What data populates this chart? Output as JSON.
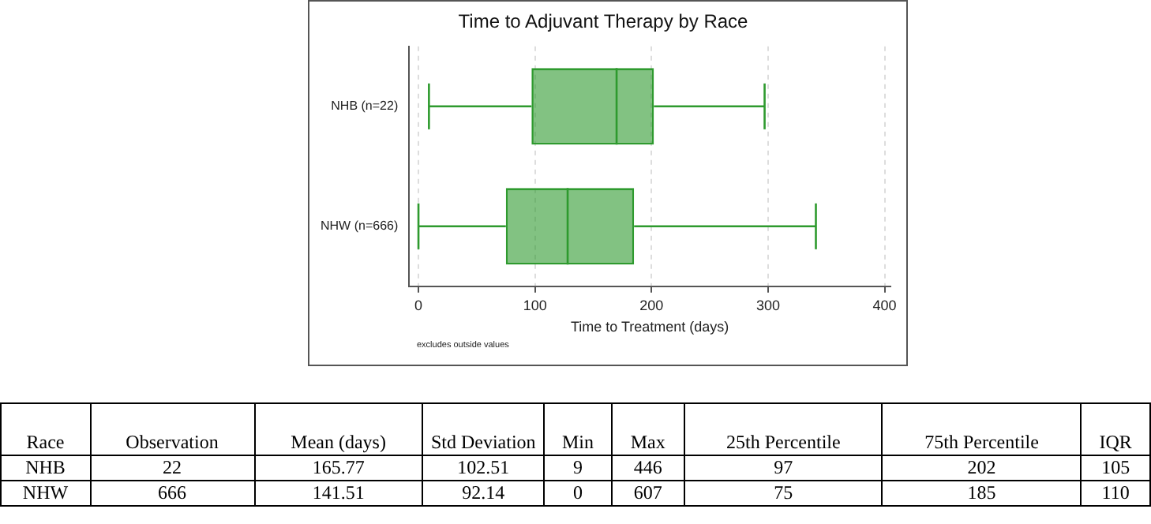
{
  "chart_data": {
    "type": "box",
    "title": "Time to Adjuvant Therapy by Race",
    "xlabel": "Time to Treatment (days)",
    "orientation": "horizontal",
    "categories": [
      "NHB (n=22)",
      "NHW (n=666)"
    ],
    "series": [
      {
        "color": "#2e9a2e",
        "boxes": [
          {
            "low": 9,
            "q1": 97,
            "median": 170,
            "q3": 202,
            "high": 297
          },
          {
            "low": 0,
            "q1": 75,
            "median": 128,
            "q3": 185,
            "high": 341
          }
        ]
      }
    ],
    "xlim": [
      -8,
      405
    ],
    "xticks": [
      0,
      100,
      200,
      300,
      400
    ],
    "grid": "x",
    "legend": false,
    "annotations": [
      "excludes outside values",
      "Race",
      "Observation",
      "Mean (days)",
      "Std Deviation",
      "Min",
      "Max",
      "25th Percentile",
      "75th Percentile",
      "IQR",
      "NHB",
      "22",
      "165.77",
      "102.51",
      "9",
      "446",
      "97",
      "202",
      "105",
      "NHW",
      "666",
      "141.51",
      "92.14",
      "0",
      "607",
      "75",
      "185",
      "110"
    ]
  }
}
